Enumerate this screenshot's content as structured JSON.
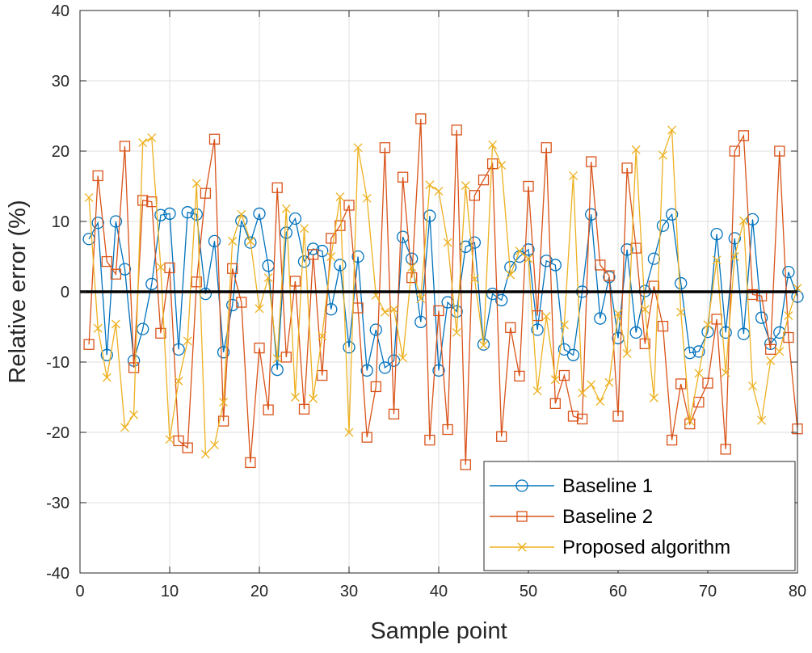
{
  "chart_data": {
    "type": "line",
    "title": "",
    "xlabel": "Sample point",
    "ylabel": "Relative error (%)",
    "xlim": [
      0,
      80
    ],
    "ylim": [
      -40,
      40
    ],
    "xticks": [
      0,
      10,
      20,
      30,
      40,
      50,
      60,
      70,
      80
    ],
    "yticks": [
      -40,
      -30,
      -20,
      -10,
      0,
      10,
      20,
      30,
      40
    ],
    "grid": true,
    "legend_position": "bottom-right",
    "reference_line": {
      "y": 0,
      "color": "#000000"
    },
    "x": [
      1,
      2,
      3,
      4,
      5,
      6,
      7,
      8,
      9,
      10,
      11,
      12,
      13,
      14,
      15,
      16,
      17,
      18,
      19,
      20,
      21,
      22,
      23,
      24,
      25,
      26,
      27,
      28,
      29,
      30,
      31,
      32,
      33,
      34,
      35,
      36,
      37,
      38,
      39,
      40,
      41,
      42,
      43,
      44,
      45,
      46,
      47,
      48,
      49,
      50,
      51,
      52,
      53,
      54,
      55,
      56,
      57,
      58,
      59,
      60,
      61,
      62,
      63,
      64,
      65,
      66,
      67,
      68,
      69,
      70,
      71,
      72,
      73,
      74,
      75,
      76,
      77,
      78,
      79,
      80
    ],
    "series": [
      {
        "name": "Baseline 1",
        "color": "#0072BD",
        "marker": "circle",
        "values": [
          7.5,
          9.8,
          -9.0,
          10.0,
          3.2,
          -9.8,
          -5.3,
          1.1,
          10.9,
          11.1,
          -8.2,
          11.3,
          11.0,
          -0.3,
          7.2,
          -8.6,
          -1.9,
          10.1,
          7.0,
          11.1,
          3.7,
          -11.1,
          8.4,
          10.4,
          4.3,
          6.1,
          5.8,
          -2.5,
          3.8,
          -7.9,
          5.0,
          -11.2,
          -5.4,
          -10.8,
          -9.8,
          7.8,
          4.7,
          -4.3,
          10.8,
          -11.2,
          -1.5,
          -2.8,
          6.4,
          7.0,
          -7.5,
          -0.3,
          -1.2,
          3.5,
          5.0,
          6.0,
          -5.4,
          4.4,
          3.8,
          -8.2,
          -9.0,
          0.0,
          11.0,
          -3.8,
          2.1,
          -6.6,
          6.0,
          -5.8,
          0.1,
          4.7,
          9.4,
          11.0,
          1.2,
          -8.7,
          -8.5,
          -5.7,
          8.2,
          -5.8,
          7.6,
          -6.0,
          10.3,
          -3.7,
          -7.4,
          -5.8,
          2.8,
          -0.7
        ]
      },
      {
        "name": "Baseline 2",
        "color": "#D95319",
        "marker": "square",
        "values": [
          -7.5,
          16.5,
          4.3,
          2.5,
          20.7,
          -10.8,
          13.0,
          12.8,
          -5.9,
          3.4,
          -21.2,
          -22.2,
          1.4,
          14.0,
          21.7,
          -18.4,
          3.3,
          -1.5,
          -24.3,
          -8.0,
          -16.8,
          14.8,
          -9.3,
          1.5,
          -16.7,
          5.3,
          -11.9,
          7.6,
          9.4,
          12.3,
          -2.3,
          -20.7,
          -13.5,
          20.5,
          -17.4,
          16.3,
          2.0,
          24.6,
          -21.1,
          -2.7,
          -19.6,
          23.0,
          -24.6,
          13.7,
          15.9,
          18.2,
          -20.6,
          -5.1,
          -12.0,
          15.0,
          -3.4,
          20.5,
          -15.9,
          -11.9,
          -17.7,
          -18.1,
          18.5,
          3.8,
          2.3,
          -17.7,
          17.6,
          6.2,
          -7.4,
          0.8,
          -4.9,
          -21.1,
          -13.1,
          -18.8,
          -15.7,
          -13.0,
          -3.9,
          -22.4,
          20.0,
          22.2,
          -0.4,
          -0.6,
          -8.2,
          20.0,
          -6.5,
          -19.5
        ]
      },
      {
        "name": "Proposed algorithm",
        "color": "#EDB120",
        "marker": "x",
        "values": [
          13.4,
          -5.2,
          -12.2,
          -4.6,
          -19.3,
          -17.5,
          21.2,
          21.9,
          3.5,
          -21.0,
          -12.7,
          -7.0,
          15.4,
          -23.1,
          -21.8,
          -15.7,
          7.2,
          11.0,
          7.2,
          -2.4,
          2.0,
          -9.5,
          11.8,
          -15.0,
          9.0,
          -15.2,
          -6.3,
          5.0,
          13.5,
          -20.0,
          20.5,
          13.3,
          -0.5,
          -2.9,
          -2.5,
          -9.4,
          3.5,
          -1.0,
          15.2,
          14.3,
          7.0,
          -5.8,
          15.1,
          1.8,
          -7.6,
          20.9,
          18.0,
          2.4,
          5.8,
          4.7,
          -14.1,
          -3.5,
          -12.5,
          -4.7,
          16.5,
          -14.4,
          -13.2,
          -15.6,
          -12.9,
          -3.1,
          -8.8,
          20.2,
          -2.5,
          -15.1,
          19.4,
          23.0,
          -2.9,
          -18.4,
          -11.6,
          -4.7,
          4.5,
          -11.5,
          5.0,
          10.1,
          -13.4,
          -18.3,
          -9.8,
          -8.5,
          -3.4,
          0.5
        ]
      }
    ]
  }
}
